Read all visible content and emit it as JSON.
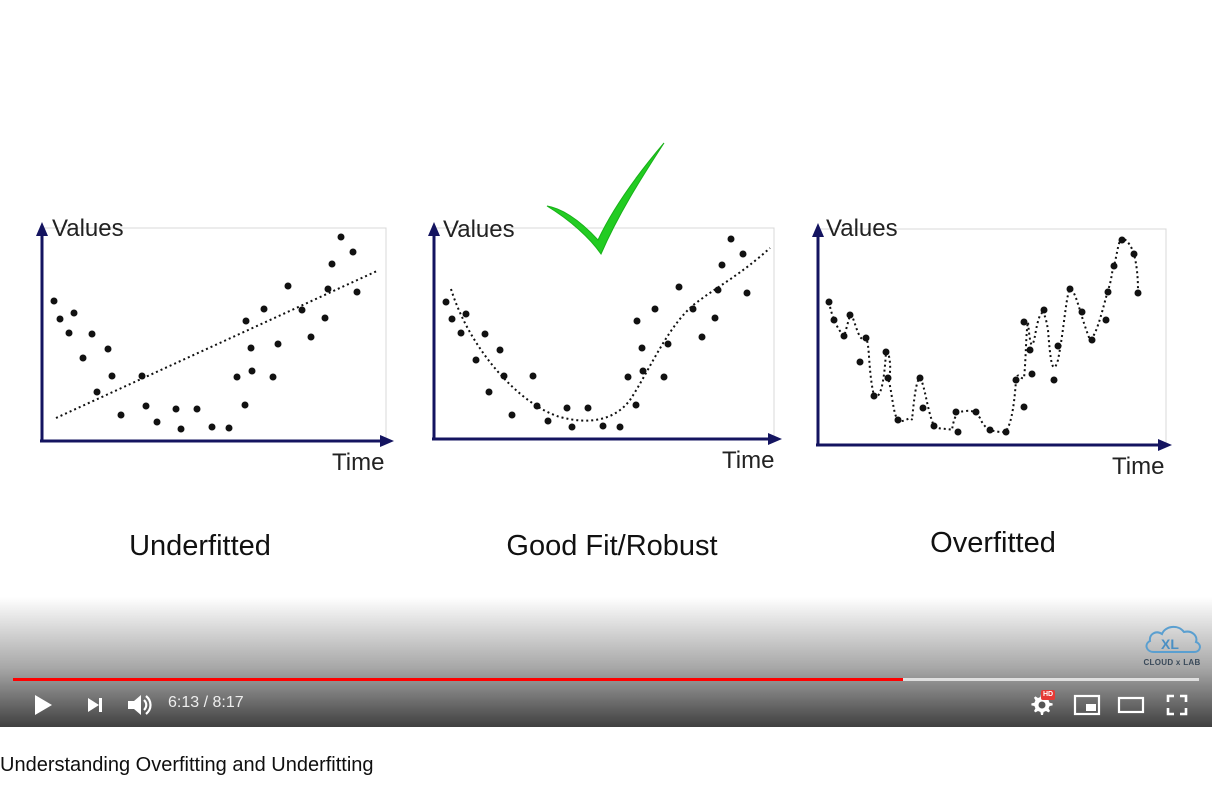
{
  "video": {
    "title": "Understanding Overfitting and Underfitting",
    "current_time": "6:13",
    "duration": "8:17",
    "time_display": "6:13 / 8:17",
    "progress_played_fraction": 0.7505,
    "progress_loaded_fraction": 1.0,
    "hd_badge": "HD",
    "accent_color": "#ff0000"
  },
  "controls": {
    "play_icon": "play-icon",
    "next_icon": "next-icon",
    "volume_icon": "volume-icon",
    "settings_icon": "gear-icon",
    "miniplayer_icon": "miniplayer-icon",
    "theater_icon": "theater-icon",
    "fullscreen_icon": "fullscreen-icon"
  },
  "watermark": {
    "text": "CLOUD x LAB",
    "logo_text": "XL"
  },
  "slide": {
    "check_mark_color": "#22cc22",
    "axis_color": "#141460",
    "panels": [
      {
        "caption": "Underfitted",
        "y_label": "Values",
        "x_label": "Time",
        "fit": "linear"
      },
      {
        "caption": "Good Fit/Robust",
        "y_label": "Values",
        "x_label": "Time",
        "fit": "smooth"
      },
      {
        "caption": "Overfitted",
        "y_label": "Values",
        "x_label": "Time",
        "fit": "wiggly"
      }
    ]
  }
}
